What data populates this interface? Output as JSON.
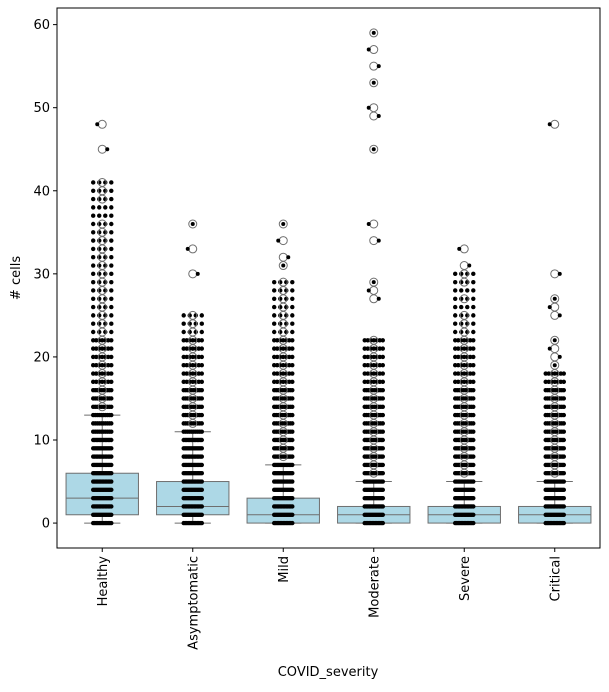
{
  "chart_data": {
    "type": "box",
    "title": "",
    "xlabel": "COVID_severity",
    "ylabel": "# cells",
    "ylim": [
      -3,
      62
    ],
    "yticks": [
      0,
      10,
      20,
      30,
      40,
      50,
      60
    ],
    "categories": [
      "Healthy",
      "Asymptomatic",
      "Mild",
      "Moderate",
      "Severe",
      "Critical"
    ],
    "box_color": "#add8e6",
    "edge_color": "#6e6e6e",
    "point_color": "#000000",
    "boxes": [
      {
        "category": "Healthy",
        "q1": 1,
        "median": 3,
        "q3": 6,
        "whisker_low": 0,
        "whisker_high": 13,
        "strip_max": 41,
        "outliers": [
          14,
          15,
          16,
          17,
          18,
          19,
          20,
          21,
          22,
          23,
          24,
          25,
          26,
          27,
          28,
          29,
          30,
          31,
          32,
          33,
          34,
          35,
          36,
          39,
          40,
          41,
          45,
          48
        ]
      },
      {
        "category": "Asymptomatic",
        "q1": 1,
        "median": 2,
        "q3": 5,
        "whisker_low": 0,
        "whisker_high": 11,
        "strip_max": 25,
        "outliers": [
          12,
          13,
          14,
          15,
          16,
          17,
          18,
          19,
          20,
          21,
          22,
          23,
          24,
          25,
          30,
          33,
          36
        ]
      },
      {
        "category": "Mild",
        "q1": 0,
        "median": 1,
        "q3": 3,
        "whisker_low": 0,
        "whisker_high": 7,
        "strip_max": 29,
        "outliers": [
          8,
          9,
          10,
          11,
          12,
          13,
          14,
          15,
          16,
          17,
          18,
          19,
          20,
          21,
          22,
          23,
          24,
          25,
          26,
          27,
          28,
          29,
          31,
          32,
          34,
          36
        ]
      },
      {
        "category": "Moderate",
        "q1": 0,
        "median": 1,
        "q3": 2,
        "whisker_low": 0,
        "whisker_high": 5,
        "strip_max": 22,
        "outliers": [
          6,
          7,
          8,
          9,
          10,
          11,
          12,
          13,
          14,
          15,
          16,
          17,
          18,
          19,
          20,
          21,
          22,
          27,
          28,
          29,
          34,
          36,
          45,
          49,
          50,
          53,
          55,
          57,
          59
        ]
      },
      {
        "category": "Severe",
        "q1": 0,
        "median": 1,
        "q3": 2,
        "whisker_low": 0,
        "whisker_high": 5,
        "strip_max": 30,
        "outliers": [
          6,
          7,
          8,
          9,
          10,
          11,
          12,
          13,
          14,
          15,
          16,
          17,
          18,
          19,
          20,
          21,
          22,
          23,
          24,
          25,
          27,
          29,
          30,
          31,
          33
        ]
      },
      {
        "category": "Critical",
        "q1": 0,
        "median": 1,
        "q3": 2,
        "whisker_low": 0,
        "whisker_high": 5,
        "strip_max": 18,
        "outliers": [
          6,
          7,
          8,
          9,
          10,
          11,
          12,
          13,
          14,
          15,
          16,
          17,
          18,
          19,
          20,
          21,
          22,
          25,
          26,
          27,
          30,
          48
        ]
      }
    ]
  }
}
